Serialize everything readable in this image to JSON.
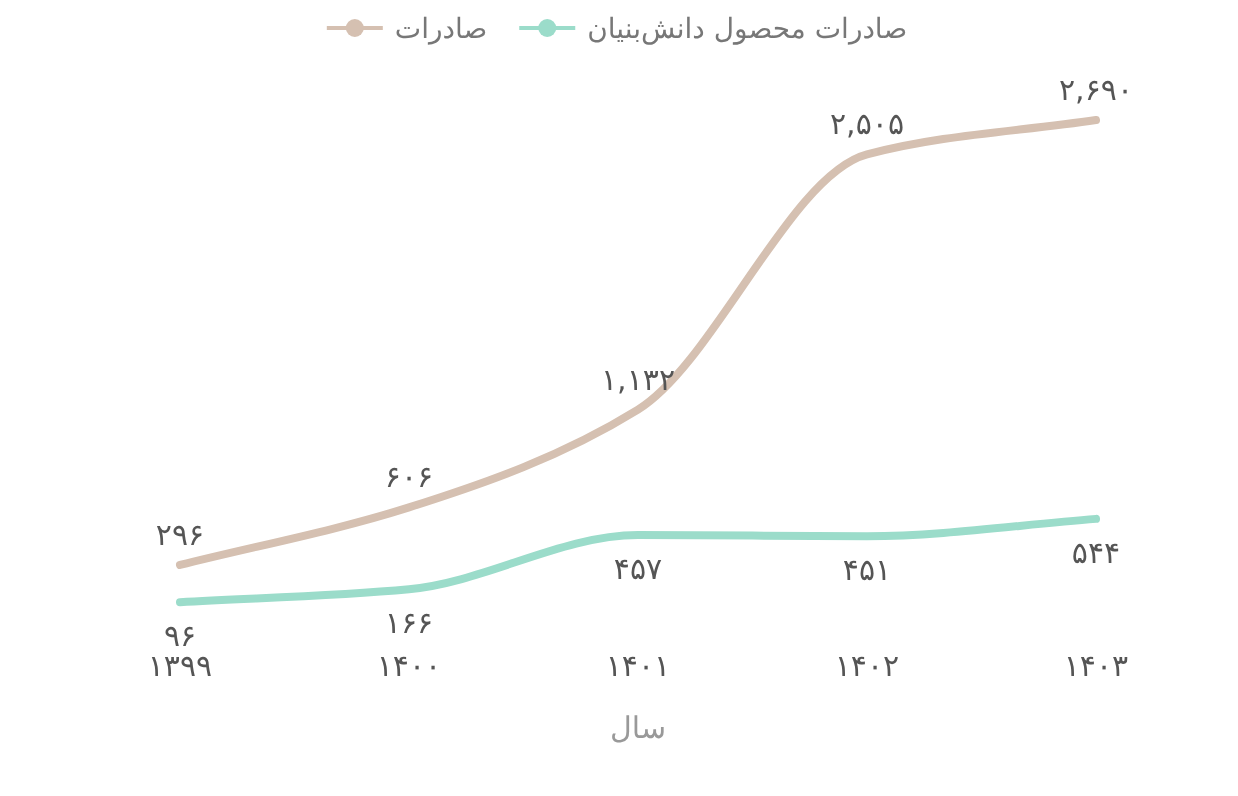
{
  "chart_data": {
    "type": "line",
    "xlabel": "سال",
    "categories": [
      "۱۳۹۹",
      "۱۴۰۰",
      "۱۴۰۱",
      "۱۴۰۲",
      "۱۴۰۳"
    ],
    "legend": "top",
    "grid": false,
    "series": [
      {
        "name": "صادرات",
        "color": "#d5c0b1",
        "values": [
          296,
          606,
          1132,
          2505,
          2690
        ],
        "value_labels": [
          "۲۹۶",
          "۶۰۶",
          "۱,۱۳۲",
          "۲,۵۰۵",
          "۲,۶۹۰"
        ]
      },
      {
        "name": "صادرات محصول دانش‌بنیان",
        "color": "#9bdcca",
        "values": [
          96,
          166,
          457,
          451,
          544
        ],
        "value_labels": [
          "۹۶",
          "۱۶۶",
          "۴۵۷",
          "۴۵۱",
          "۵۴۴"
        ]
      }
    ]
  }
}
